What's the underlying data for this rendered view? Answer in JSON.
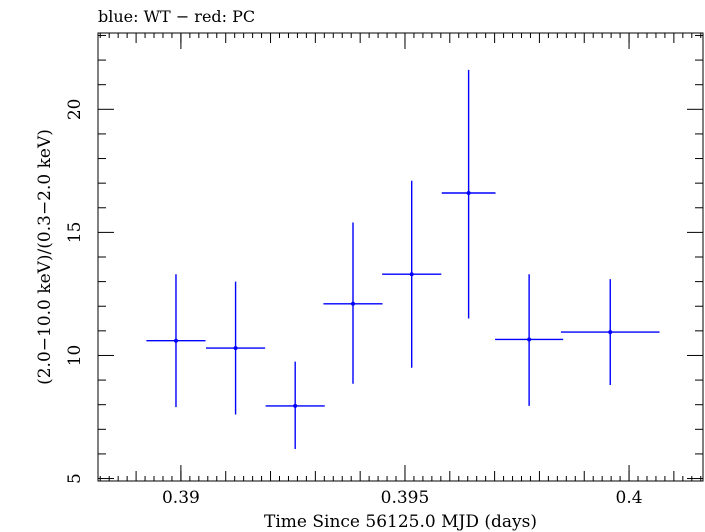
{
  "chart_data": {
    "type": "scatter",
    "title": "blue: WT − red: PC",
    "xlabel": "Time Since 56125.0 MJD (days)",
    "ylabel": "(2.0−10.0 keV)/(0.3−2.0 keV)",
    "xlim": [
      0.38815,
      0.40165
    ],
    "ylim": [
      4.9,
      23.1
    ],
    "xticks": [
      0.39,
      0.395,
      0.4
    ],
    "xtick_labels": [
      "0.39",
      "0.395",
      "0.4"
    ],
    "yticks": [
      5,
      10,
      15,
      20
    ],
    "ytick_labels": [
      "5",
      "10",
      "15",
      "20"
    ],
    "grid": false,
    "series": [
      {
        "name": "WT",
        "color": "#0000ff",
        "points": [
          {
            "x": 0.38989,
            "y": 10.6,
            "xerr": 0.00066,
            "ylow": 7.9,
            "yhigh": 13.3
          },
          {
            "x": 0.39122,
            "y": 10.3,
            "xerr": 0.00066,
            "ylow": 7.6,
            "yhigh": 13.0
          },
          {
            "x": 0.39255,
            "y": 7.95,
            "xerr": 0.00066,
            "ylow": 6.2,
            "yhigh": 9.75
          },
          {
            "x": 0.39384,
            "y": 12.1,
            "xerr": 0.00066,
            "ylow": 8.85,
            "yhigh": 15.4
          },
          {
            "x": 0.39515,
            "y": 13.3,
            "xerr": 0.00066,
            "ylow": 9.5,
            "yhigh": 17.1
          },
          {
            "x": 0.39642,
            "y": 16.6,
            "xerr": 0.0006,
            "ylow": 11.5,
            "yhigh": 21.6
          },
          {
            "x": 0.39777,
            "y": 10.65,
            "xerr": 0.00076,
            "ylow": 7.95,
            "yhigh": 13.3
          },
          {
            "x": 0.39958,
            "y": 10.95,
            "xerr": 0.0011,
            "ylow": 8.8,
            "yhigh": 13.1
          }
        ]
      }
    ]
  }
}
